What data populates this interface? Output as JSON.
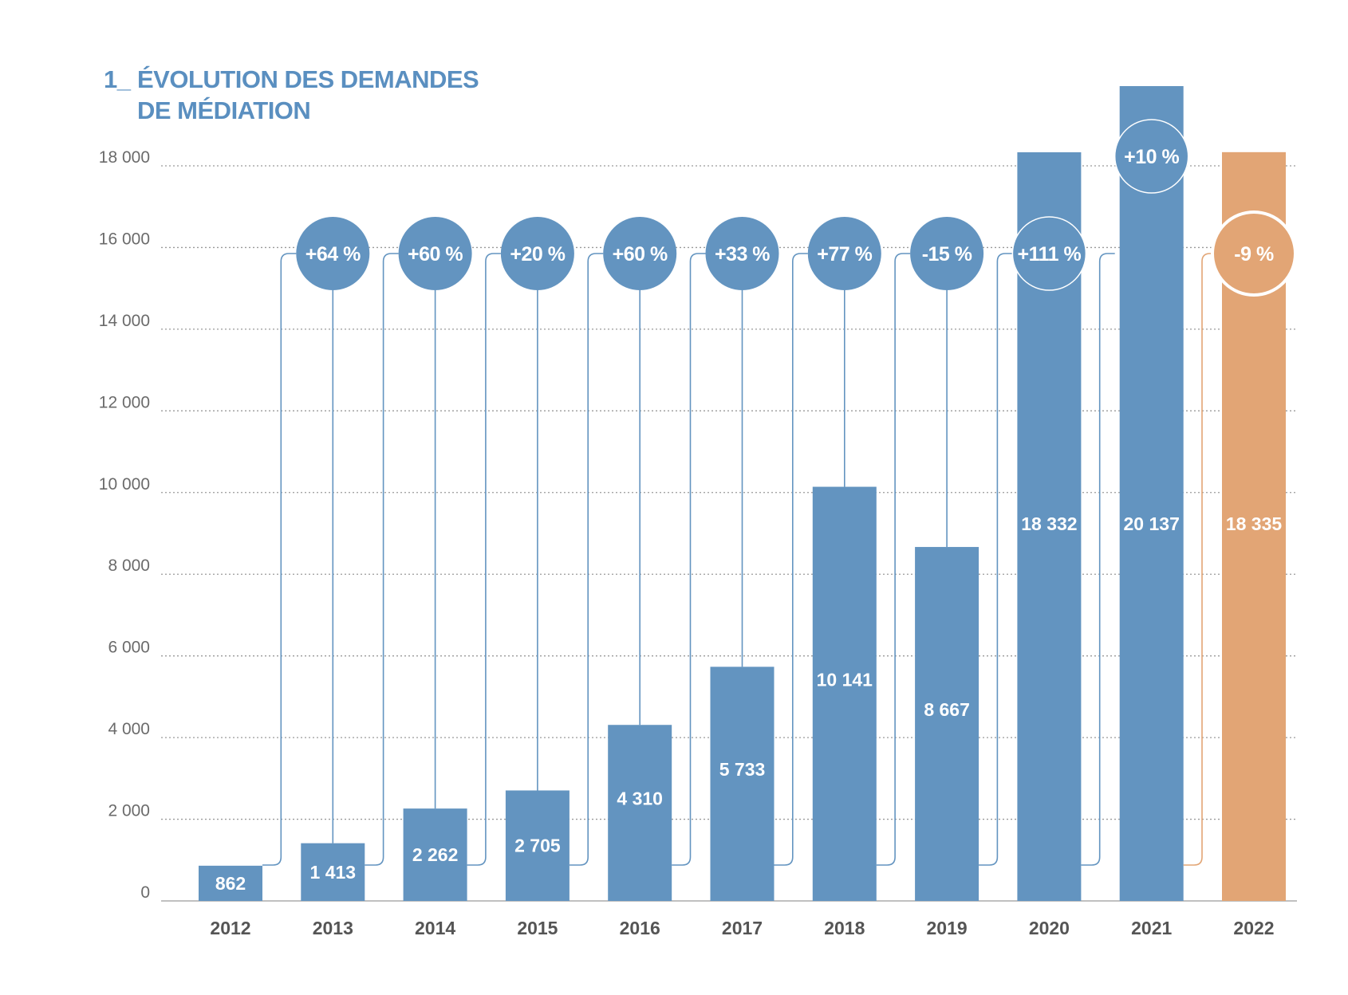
{
  "colors": {
    "bar": "#6394c0",
    "highlight": "#e2a575",
    "title": "#5a8fc0",
    "grid": "#9a9a9a",
    "connector": "#6394c0"
  },
  "title": {
    "prefix": "1_",
    "line1": "ÉVOLUTION DES DEMANDES",
    "line2": "DE MÉDIATION"
  },
  "chart_data": {
    "type": "bar",
    "title": "1_ ÉVOLUTION DES DEMANDES DE MÉDIATION",
    "xlabel": "",
    "ylabel": "",
    "ylim": [
      0,
      18000
    ],
    "yticks": [
      "0",
      "2 000",
      "4 000",
      "6 000",
      "8 000",
      "10 000",
      "12 000",
      "14 000",
      "16 000",
      "18 000"
    ],
    "grid": true,
    "categories": [
      "2012",
      "2013",
      "2014",
      "2015",
      "2016",
      "2017",
      "2018",
      "2019",
      "2020",
      "2021",
      "2022"
    ],
    "values": [
      862,
      1413,
      2262,
      2705,
      4310,
      5733,
      10141,
      8667,
      18332,
      20137,
      18335
    ],
    "value_labels": [
      "862",
      "1 413",
      "2 262",
      "2 705",
      "4 310",
      "5 733",
      "10 141",
      "8 667",
      "18 332",
      "20 137",
      "18 335"
    ],
    "change_labels": [
      "",
      "+64 %",
      "+60 %",
      "+20 %",
      "+60 %",
      "+33 %",
      "+77 %",
      "-15 %",
      "+111 %",
      "+10 %",
      "-9 %"
    ],
    "highlight_category": "2022"
  }
}
